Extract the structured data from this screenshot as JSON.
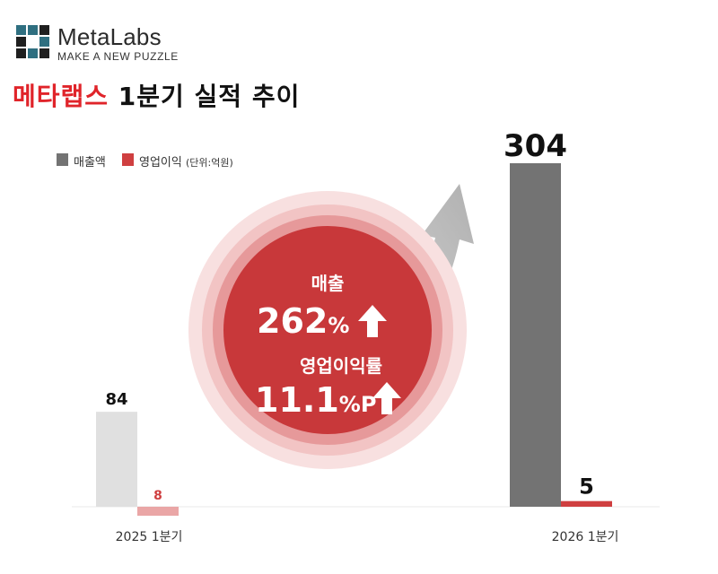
{
  "logo": {
    "brand": "MetaLabs",
    "tagline": "MAKE A NEW PUZZLE"
  },
  "title": {
    "brand_part": "메타랩스",
    "rest": " 1분기 실적 추이"
  },
  "legend": {
    "revenue": "매출액",
    "operating_profit": "영업이익",
    "unit": "(단위:억원)"
  },
  "badge": {
    "revenue_label": "매출",
    "revenue_growth": "262",
    "revenue_growth_unit": "%",
    "margin_label": "영업이익률",
    "margin_growth": "11.1",
    "margin_growth_unit": "%P"
  },
  "colors": {
    "revenue_2026": "#737373",
    "revenue_2025": "#e0e0e0",
    "profit_2026": "#cf3f40",
    "profit_2025": "#eaa6a6",
    "accent": "#e0242a",
    "badge_core": "#c8383a"
  },
  "chart_data": {
    "type": "bar",
    "categories": [
      "2025 1분기",
      "2026 1분기"
    ],
    "series": [
      {
        "name": "매출액",
        "values": [
          84,
          304
        ]
      },
      {
        "name": "영업이익",
        "values": [
          -8,
          5
        ]
      }
    ],
    "data_labels": [
      "84",
      "304",
      "8",
      "5"
    ],
    "legend": "top-left",
    "grid": false
  }
}
